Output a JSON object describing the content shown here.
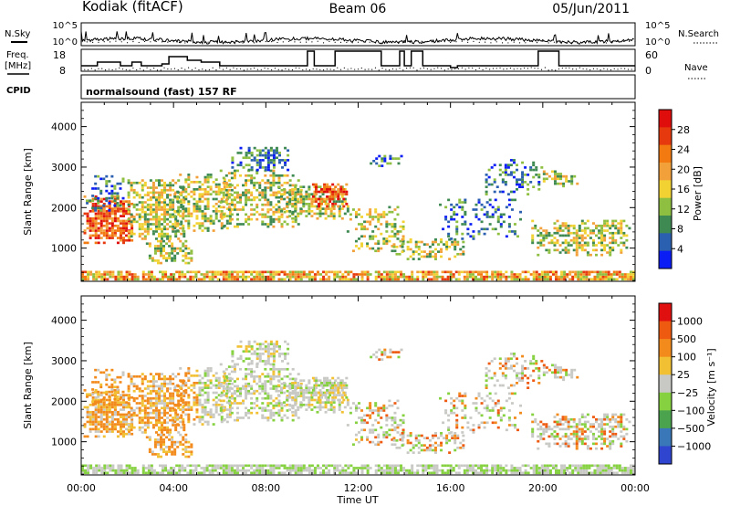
{
  "header": {
    "station": "Kodiak (fitACF)",
    "beam": "Beam 06",
    "date": "05/Jun/2011"
  },
  "summary_labels": {
    "nsky": "N.Sky",
    "nsearch": "N.Search",
    "freq_line1": "Freq.",
    "freq_line2": "[MHz]",
    "nave": "Nave",
    "cpid": "CPID",
    "cpid_value": "normalsound (fast) 157 RF",
    "noise_ticks_left": [
      "10^5",
      "10^0"
    ],
    "noise_ticks_right": [
      "10^5",
      "10^0"
    ],
    "freq_ticks": [
      "18",
      "8"
    ],
    "nave_ticks": [
      "60",
      "0"
    ]
  },
  "colorbars": {
    "power": {
      "label": "Power [dB]",
      "ticks": [
        "28",
        "24",
        "20",
        "16",
        "12",
        "8",
        "4"
      ],
      "colors": [
        "#0b1df5",
        "#2b5fb0",
        "#3f8a53",
        "#8fbf40",
        "#f2d233",
        "#f2a13a",
        "#f27a10",
        "#e63a0e",
        "#e00d0d"
      ]
    },
    "velocity": {
      "label": "Velocity [m s⁻¹]",
      "ticks": [
        "1000",
        "500",
        "100",
        "25",
        "−25",
        "−100",
        "−500",
        "−1000"
      ],
      "colors": [
        "#2f45cf",
        "#3a77b8",
        "#4ba34e",
        "#85d13f",
        "#c8c8c4",
        "#f2c133",
        "#f28a1c",
        "#ee5a10",
        "#e01010"
      ]
    }
  },
  "chart_data": [
    {
      "type": "heatmap",
      "name": "power",
      "title": "",
      "ylabel": "Slant Range [km]",
      "yticks": [
        "4000",
        "3000",
        "2000",
        "1000"
      ],
      "xlim_hours": [
        0,
        24
      ],
      "ylim_km": [
        180,
        4600
      ],
      "colorbar_label": "Power [dB]"
    },
    {
      "type": "heatmap",
      "name": "velocity",
      "ylabel": "Slant Range [km]",
      "yticks": [
        "4000",
        "3000",
        "2000",
        "1000"
      ],
      "xlabel": "Time UT",
      "xticks": [
        "00:00",
        "04:00",
        "08:00",
        "12:00",
        "16:00",
        "20:00",
        "00:00"
      ],
      "xlim_hours": [
        0,
        24
      ],
      "ylim_km": [
        180,
        4600
      ],
      "colorbar_label": "Velocity [m s⁻¹]"
    },
    {
      "type": "line",
      "name": "frequency_steps",
      "points": [
        [
          0,
          10
        ],
        [
          0.7,
          10
        ],
        [
          0.7,
          12
        ],
        [
          1.7,
          12
        ],
        [
          1.7,
          10
        ],
        [
          2.2,
          10
        ],
        [
          2.2,
          12
        ],
        [
          2.6,
          12
        ],
        [
          2.6,
          10
        ],
        [
          3.5,
          10
        ],
        [
          3.5,
          11
        ],
        [
          3.8,
          11
        ],
        [
          3.8,
          15
        ],
        [
          4.6,
          15
        ],
        [
          4.6,
          13
        ],
        [
          5.2,
          13
        ],
        [
          5.2,
          12
        ],
        [
          6,
          12
        ],
        [
          6,
          10
        ],
        [
          9.8,
          10
        ],
        [
          9.8,
          18
        ],
        [
          10.1,
          18
        ],
        [
          10.1,
          10
        ],
        [
          11,
          10
        ],
        [
          11,
          18
        ],
        [
          13,
          18
        ],
        [
          13,
          10
        ],
        [
          13.8,
          10
        ],
        [
          13.8,
          18
        ],
        [
          14,
          18
        ],
        [
          14,
          10
        ],
        [
          14.3,
          10
        ],
        [
          14.3,
          18
        ],
        [
          14.8,
          18
        ],
        [
          14.8,
          10
        ],
        [
          16,
          10
        ],
        [
          16,
          9
        ],
        [
          16.3,
          9
        ],
        [
          16.3,
          10
        ],
        [
          19.8,
          10
        ],
        [
          19.8,
          18
        ],
        [
          20.7,
          18
        ],
        [
          20.7,
          10
        ],
        [
          24,
          10
        ]
      ]
    }
  ]
}
